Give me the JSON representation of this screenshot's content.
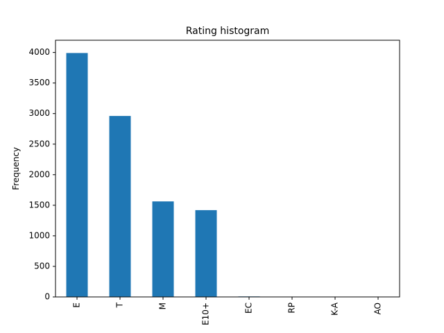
{
  "chart_data": {
    "type": "bar",
    "title": "Rating histogram",
    "xlabel": "",
    "ylabel": "Frequency",
    "categories": [
      "E",
      "T",
      "M",
      "E10+",
      "EC",
      "RP",
      "K-A",
      "AO"
    ],
    "values": [
      3991,
      2961,
      1563,
      1420,
      8,
      3,
      3,
      1
    ],
    "ylim": [
      0,
      4200
    ],
    "yticks": [
      0,
      500,
      1000,
      1500,
      2000,
      2500,
      3000,
      3500,
      4000
    ],
    "ytick_labels": [
      "0",
      "500",
      "1000",
      "1500",
      "2000",
      "2500",
      "3000",
      "3500",
      "4000"
    ],
    "bar_color": "#1f77b4",
    "grid": false,
    "legend": "none"
  }
}
